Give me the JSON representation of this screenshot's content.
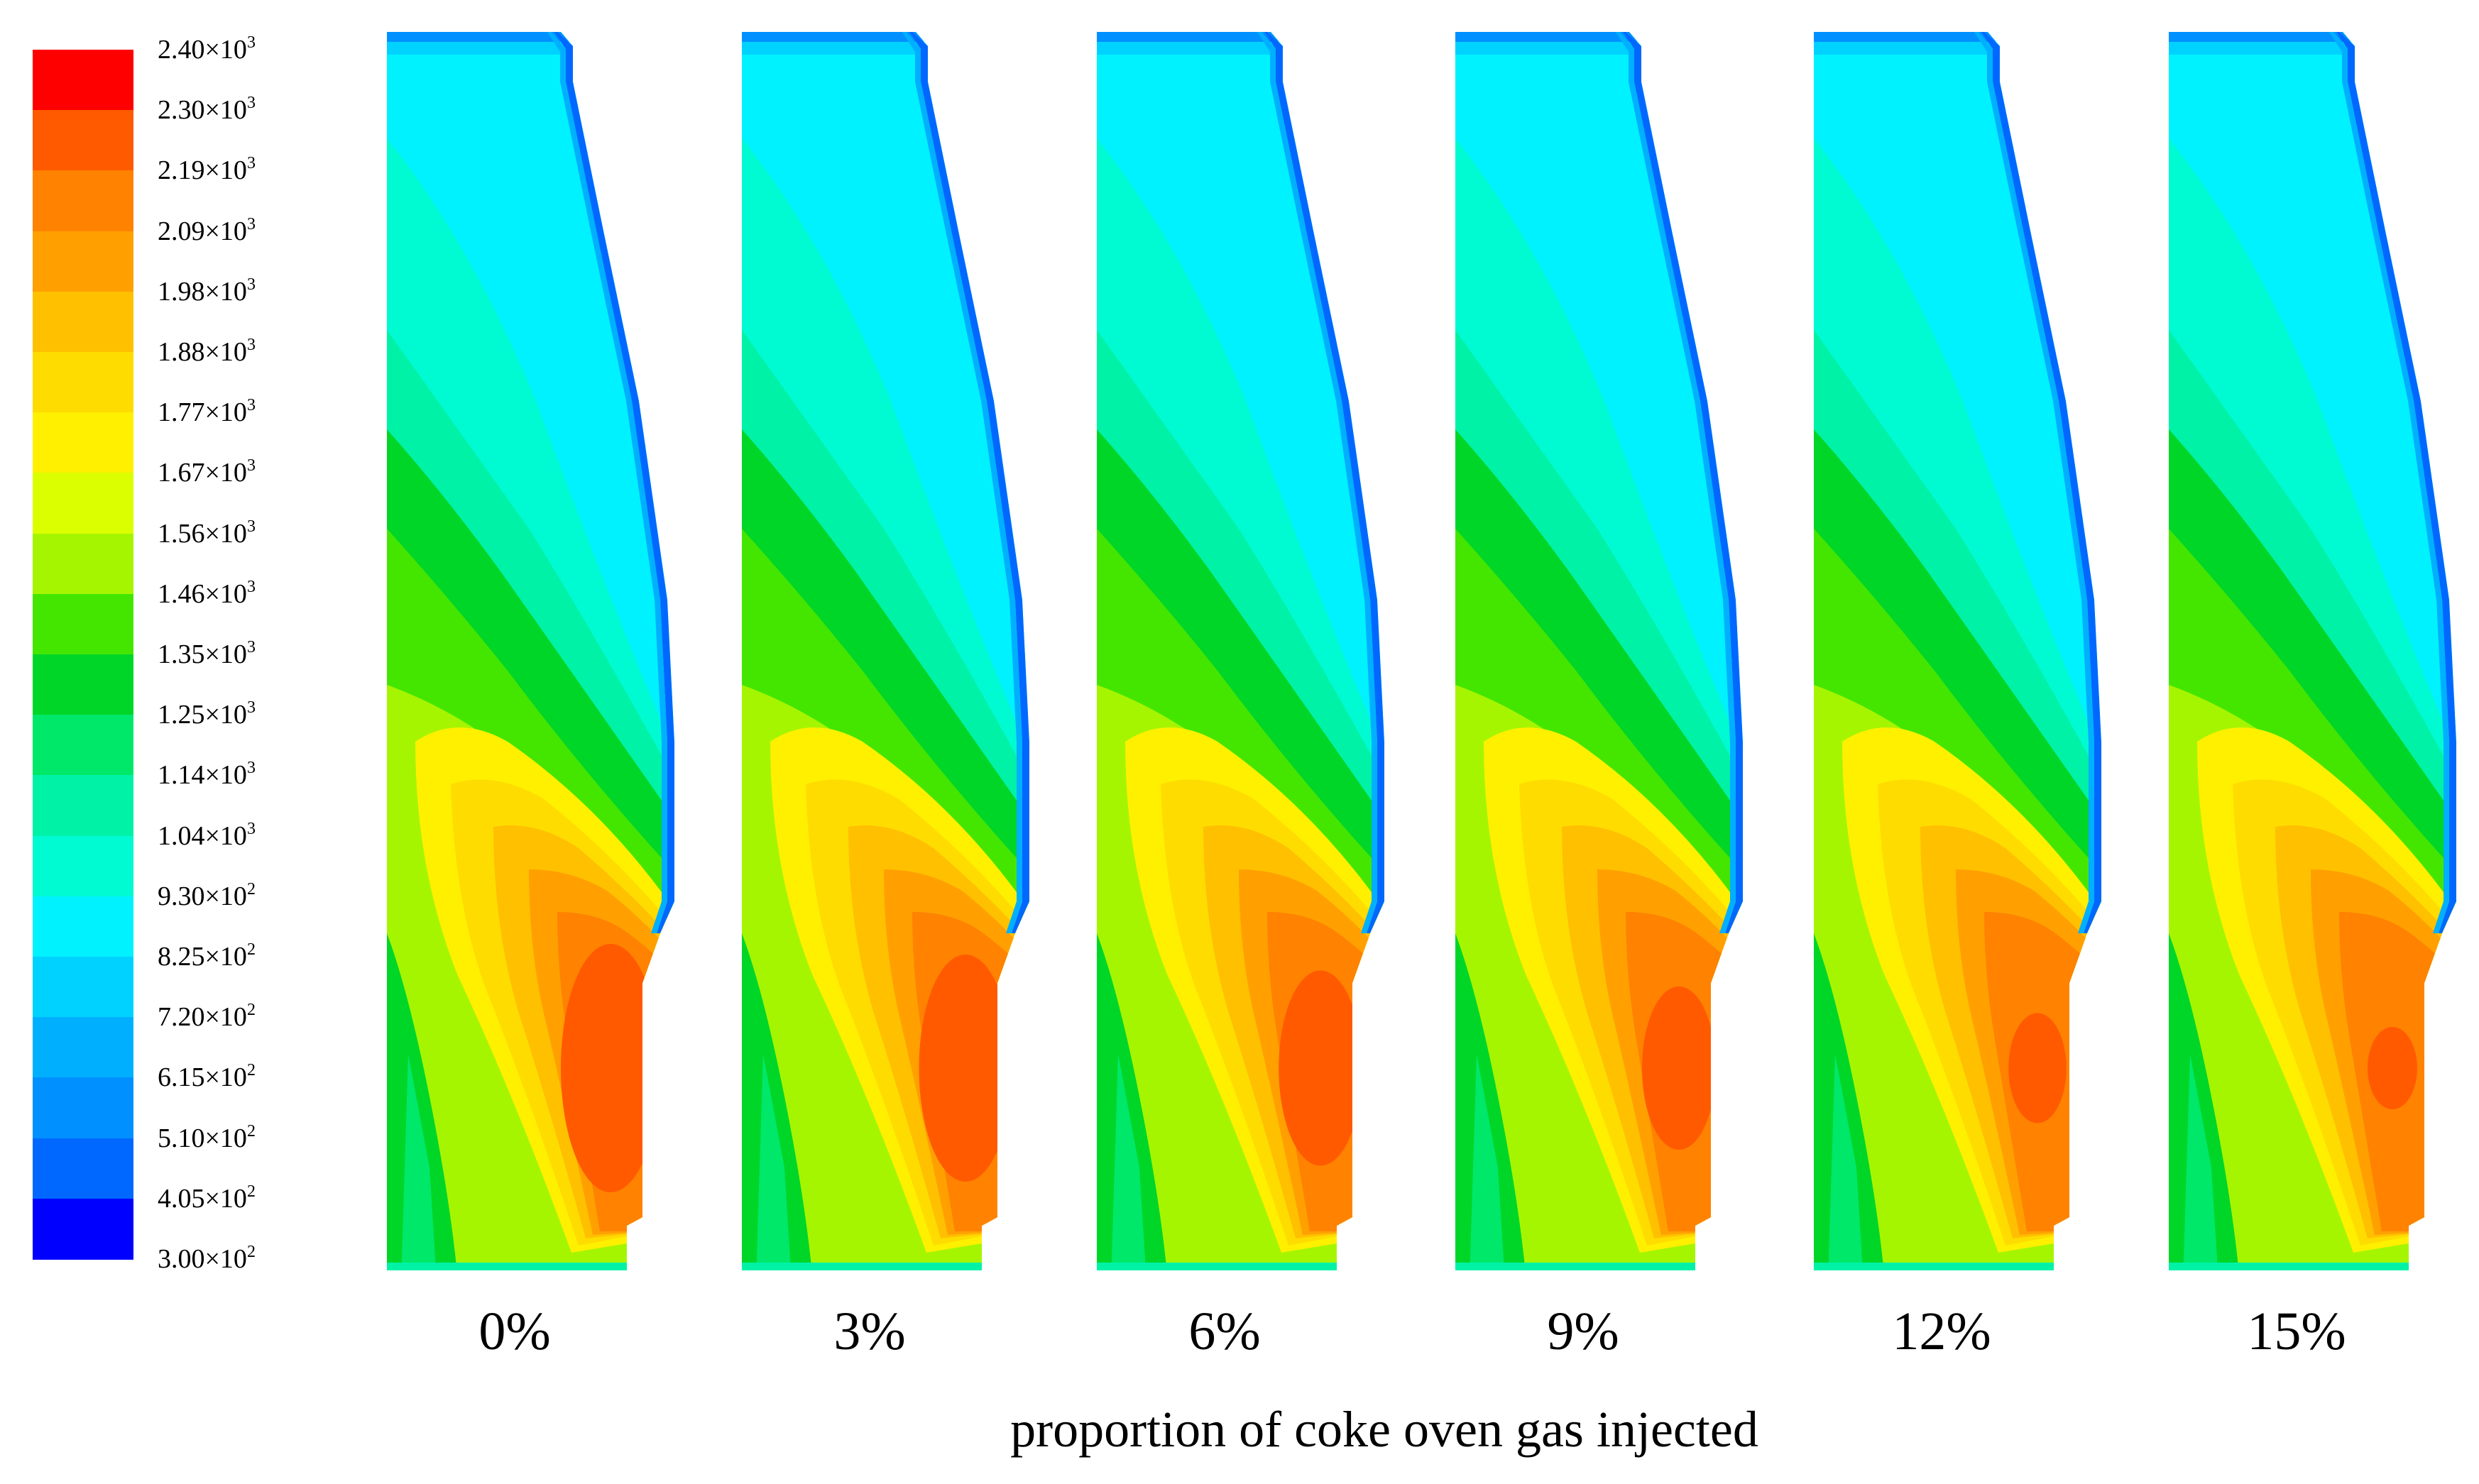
{
  "figure": {
    "x_axis_label": "proportion of coke oven gas injected",
    "panels": [
      {
        "label": "0%",
        "proportion": 0,
        "hot_core": 1.0
      },
      {
        "label": "3%",
        "proportion": 3,
        "hot_core": 0.9
      },
      {
        "label": "6%",
        "proportion": 6,
        "hot_core": 0.75
      },
      {
        "label": "9%",
        "proportion": 9,
        "hot_core": 0.6
      },
      {
        "label": "12%",
        "proportion": 12,
        "hot_core": 0.35
      },
      {
        "label": "15%",
        "proportion": 15,
        "hot_core": 0.22
      }
    ]
  },
  "colorbar": {
    "ticks": [
      {
        "mantissa": "2.40",
        "exponent": "3"
      },
      {
        "mantissa": "2.30",
        "exponent": "3"
      },
      {
        "mantissa": "2.19",
        "exponent": "3"
      },
      {
        "mantissa": "2.09",
        "exponent": "3"
      },
      {
        "mantissa": "1.98",
        "exponent": "3"
      },
      {
        "mantissa": "1.88",
        "exponent": "3"
      },
      {
        "mantissa": "1.77",
        "exponent": "3"
      },
      {
        "mantissa": "1.67",
        "exponent": "3"
      },
      {
        "mantissa": "1.56",
        "exponent": "3"
      },
      {
        "mantissa": "1.46",
        "exponent": "3"
      },
      {
        "mantissa": "1.35",
        "exponent": "3"
      },
      {
        "mantissa": "1.25",
        "exponent": "3"
      },
      {
        "mantissa": "1.14",
        "exponent": "3"
      },
      {
        "mantissa": "1.04",
        "exponent": "3"
      },
      {
        "mantissa": "9.30",
        "exponent": "2"
      },
      {
        "mantissa": "8.25",
        "exponent": "2"
      },
      {
        "mantissa": "7.20",
        "exponent": "2"
      },
      {
        "mantissa": "6.15",
        "exponent": "2"
      },
      {
        "mantissa": "5.10",
        "exponent": "2"
      },
      {
        "mantissa": "4.05",
        "exponent": "2"
      },
      {
        "mantissa": "3.00",
        "exponent": "2"
      }
    ],
    "times_sign": "×10",
    "colors_top_to_bottom": [
      "#ff0000",
      "#ff5a00",
      "#ff8200",
      "#ffa000",
      "#ffc000",
      "#ffdc00",
      "#fff000",
      "#dcff00",
      "#a6f500",
      "#44e600",
      "#00d628",
      "#00e86a",
      "#00f2a6",
      "#00fad2",
      "#00f2ff",
      "#00d2ff",
      "#00b0ff",
      "#0090ff",
      "#0068ff",
      "#0000ff"
    ]
  }
}
